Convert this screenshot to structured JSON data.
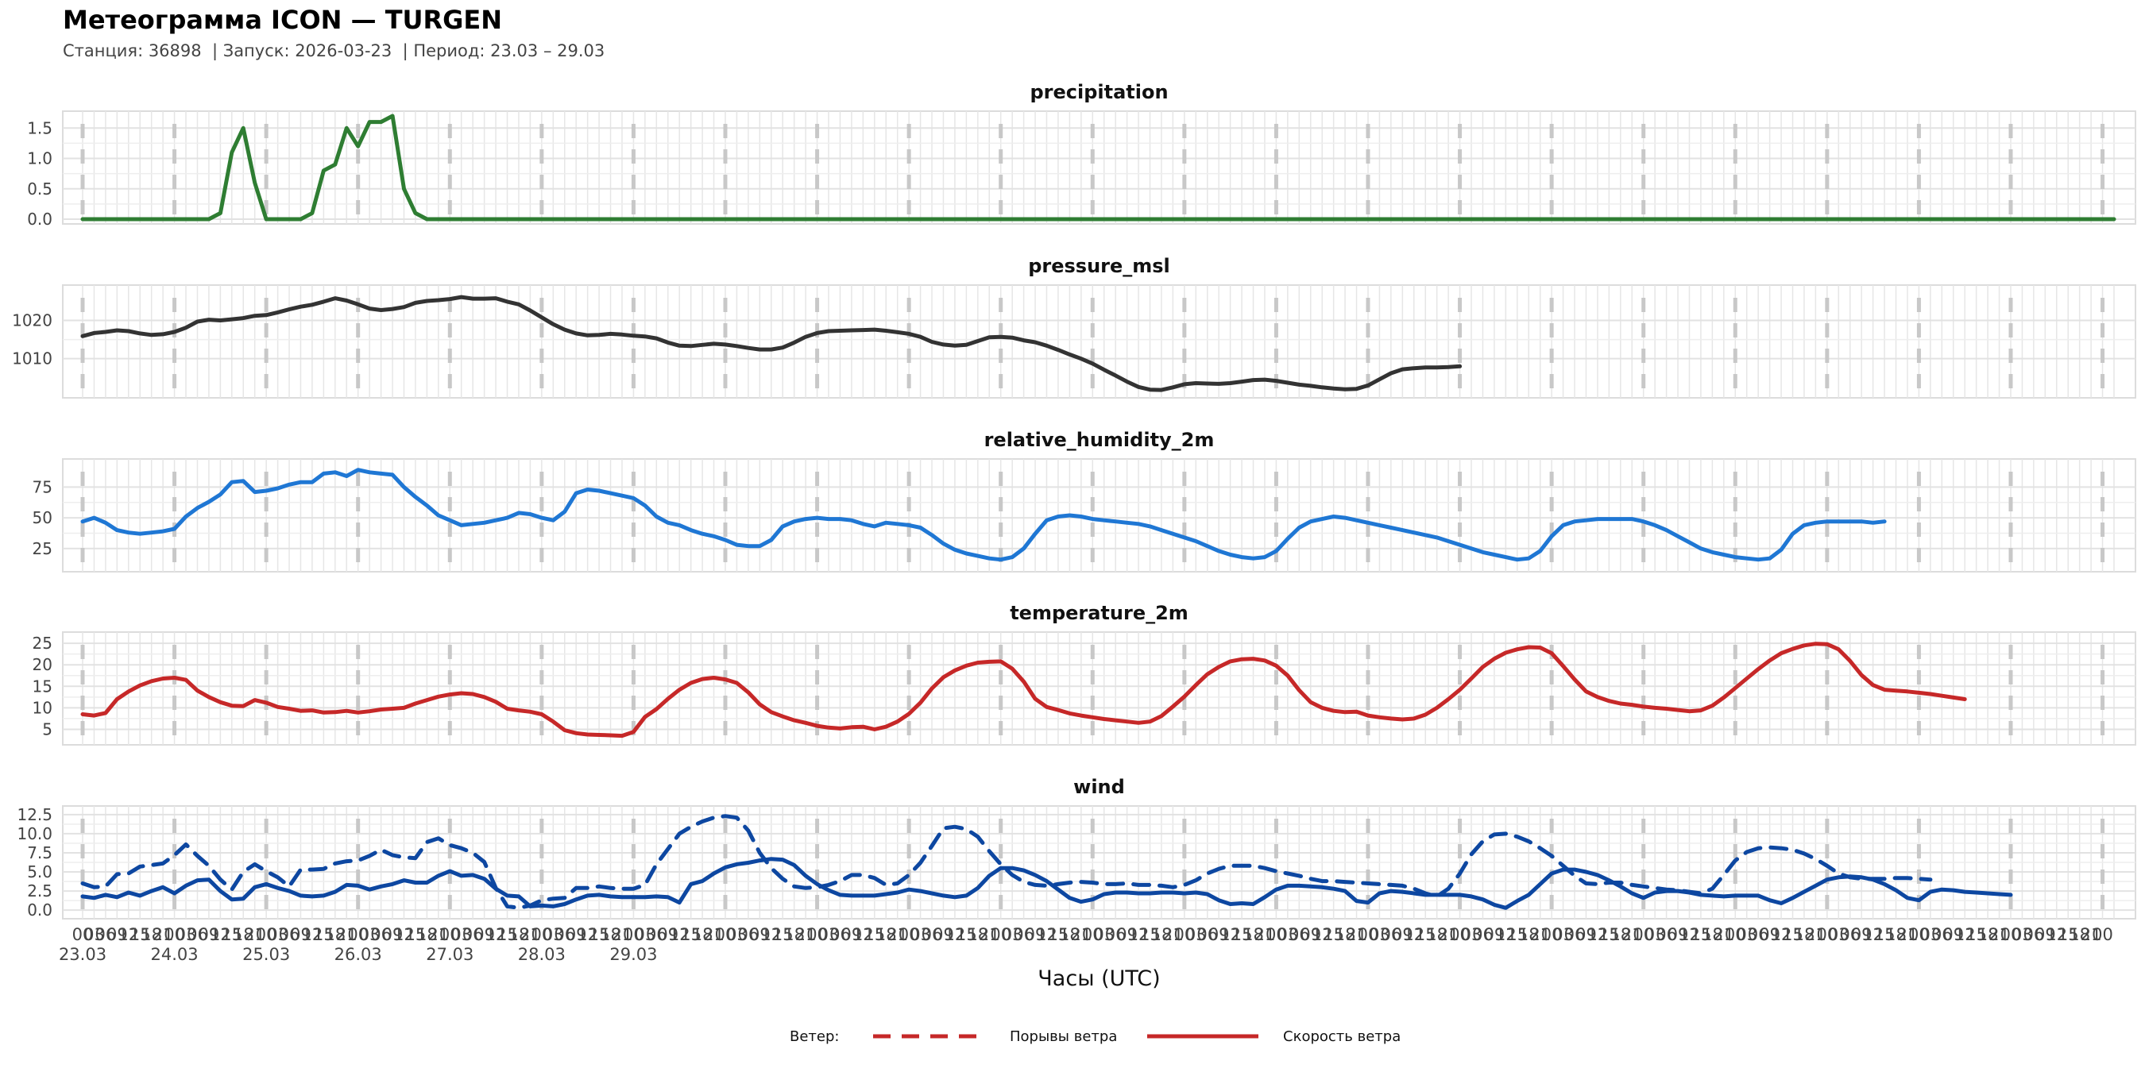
{
  "title": "Метеограмма ICON — TURGEN",
  "subtitle": "Станция: 36898  | Запуск: 2026-03-23  | Период: 23.03 – 29.03",
  "xlabel": "Часы (UTC)",
  "legend": {
    "heading": "Ветер:",
    "gusts": "Порывы ветра",
    "speed": "Скорость ветра"
  },
  "colors": {
    "precipitation": "#2e7d32",
    "pressure": "#333333",
    "humidity": "#1f77d4",
    "temperature": "#c62828",
    "wind": "#0d47a1",
    "legend": "#c62828"
  },
  "chart_data": [
    {
      "type": "line",
      "title": "precipitation",
      "ylim": [
        0,
        1.7
      ],
      "yticks": [
        "0.0",
        "0.5",
        "1.0",
        "1.5"
      ],
      "x_start": "2026-03-23 00:00",
      "x_step_hours": 3,
      "grid": true,
      "series": [
        {
          "values": [
            0,
            0,
            0,
            0,
            0,
            0,
            0,
            0,
            0,
            0,
            0,
            0,
            0.1,
            1.1,
            1.5,
            0.6,
            0,
            0,
            0,
            0,
            0.1,
            0.8,
            0.9,
            1.5,
            1.2,
            1.6,
            1.6,
            1.7,
            0.5,
            0.1,
            0,
            0,
            0,
            0,
            0,
            0,
            0,
            0,
            0,
            0,
            0,
            0,
            0,
            0,
            0,
            0,
            0,
            0,
            0,
            0,
            0,
            0,
            0,
            0,
            0,
            0,
            0,
            0,
            0,
            0,
            0,
            0,
            0,
            0,
            0,
            0,
            0,
            0,
            0,
            0,
            0,
            0,
            0,
            0,
            0,
            0,
            0,
            0,
            0,
            0,
            0,
            0,
            0,
            0,
            0,
            0,
            0,
            0,
            0,
            0,
            0,
            0,
            0,
            0,
            0,
            0,
            0,
            0,
            0,
            0,
            0,
            0,
            0,
            0,
            0,
            0,
            0,
            0,
            0,
            0,
            0,
            0,
            0,
            0,
            0,
            0,
            0,
            0,
            0,
            0,
            0,
            0,
            0,
            0,
            0,
            0,
            0,
            0,
            0,
            0,
            0,
            0,
            0,
            0,
            0,
            0,
            0,
            0,
            0,
            0,
            0,
            0,
            0,
            0,
            0,
            0,
            0,
            0,
            0,
            0,
            0,
            0,
            0,
            0,
            0,
            0,
            0,
            0,
            0,
            0,
            0,
            0,
            0,
            0,
            0,
            0,
            0,
            0,
            0,
            0,
            0,
            0,
            0,
            0,
            0,
            0,
            0,
            0
          ]
        }
      ]
    },
    {
      "type": "line",
      "title": "pressure_msl",
      "ylim": [
        1001,
        1028
      ],
      "yticks": [
        "1010",
        "1020"
      ],
      "x_start": "2026-03-23 00:00",
      "x_step_hours": 3,
      "grid": true,
      "series": [
        {
          "values": [
            1015.9,
            1016.7,
            1017,
            1017.4,
            1017.2,
            1016.6,
            1016.2,
            1016.4,
            1017,
            1018.1,
            1019.7,
            1020.2,
            1020,
            1020.3,
            1020.6,
            1021.2,
            1021.4,
            1022.1,
            1022.9,
            1023.6,
            1024.1,
            1024.9,
            1025.8,
            1025.2,
            1024.2,
            1023.1,
            1022.7,
            1023,
            1023.5,
            1024.6,
            1025.1,
            1025.3,
            1025.6,
            1026.1,
            1025.7,
            1025.7,
            1025.8,
            1024.9,
            1024.2,
            1022.6,
            1020.8,
            1019,
            1017.6,
            1016.6,
            1016.1,
            1016.2,
            1016.5,
            1016.3,
            1016,
            1015.8,
            1015.3,
            1014.2,
            1013.4,
            1013.3,
            1013.6,
            1013.9,
            1013.7,
            1013.3,
            1012.8,
            1012.4,
            1012.4,
            1012.9,
            1014.2,
            1015.7,
            1016.7,
            1017.2,
            1017.3,
            1017.4,
            1017.5,
            1017.6,
            1017.3,
            1016.9,
            1016.5,
            1015.7,
            1014.4,
            1013.7,
            1013.4,
            1013.6,
            1014.6,
            1015.6,
            1015.7,
            1015.5,
            1014.8,
            1014.3,
            1013.4,
            1012.3,
            1011.1,
            1010,
            1008.7,
            1007.1,
            1005.6,
            1004,
            1002.6,
            1001.9,
            1001.8,
            1002.5,
            1003.3,
            1003.6,
            1003.5,
            1003.4,
            1003.6,
            1004,
            1004.4,
            1004.5,
            1004.2,
            1003.7,
            1003.2,
            1002.9,
            1002.5,
            1002.2,
            1002,
            1002.1,
            1003,
            1004.6,
            1006.2,
            1007.2,
            1007.5,
            1007.7,
            1007.7,
            1007.8,
            1008
          ]
        }
      ]
    },
    {
      "type": "line",
      "title": "relative_humidity_2m",
      "ylim": [
        10,
        94
      ],
      "yticks": [
        "25",
        "50",
        "75"
      ],
      "x_start": "2026-03-23 00:00",
      "x_step_hours": 3,
      "grid": true,
      "series": [
        {
          "values": [
            47,
            50,
            46,
            40,
            38,
            37,
            38,
            39,
            41,
            51,
            58,
            63,
            69,
            79,
            80,
            71,
            72,
            74,
            77,
            79,
            79,
            86,
            87,
            84,
            89,
            87,
            86,
            85,
            75,
            67,
            60,
            52,
            48,
            44,
            45,
            46,
            48,
            50,
            54,
            53,
            50,
            48,
            55,
            70,
            73,
            72,
            70,
            68,
            66,
            60,
            51,
            46,
            44,
            40,
            37,
            35,
            32,
            28,
            27,
            27,
            32,
            43,
            47,
            49,
            50,
            49,
            49,
            48,
            45,
            43,
            46,
            45,
            44,
            42,
            36,
            29,
            24,
            21,
            19,
            17,
            16,
            18,
            25,
            37,
            48,
            51,
            52,
            51,
            49,
            48,
            47,
            46,
            45,
            43,
            40,
            37,
            34,
            31,
            27,
            23,
            20,
            18,
            17,
            18,
            23,
            33,
            42,
            47,
            49,
            51,
            50,
            48,
            46,
            44,
            42,
            40,
            38,
            36,
            34,
            31,
            28,
            25,
            22,
            20,
            18,
            16,
            17,
            23,
            35,
            44,
            47,
            48,
            49,
            49,
            49,
            49,
            47,
            44,
            40,
            35,
            30,
            25,
            22,
            20,
            18,
            17,
            16,
            17,
            24,
            37,
            44,
            46,
            47,
            47,
            47,
            47,
            46,
            47
          ]
        }
      ]
    },
    {
      "type": "line",
      "title": "temperature_2m",
      "ylim": [
        2.5,
        26.5
      ],
      "yticks": [
        "5",
        "10",
        "15",
        "20",
        "25"
      ],
      "x_start": "2026-03-23 00:00",
      "x_step_hours": 3,
      "grid": true,
      "series": [
        {
          "values": [
            8.5,
            8.2,
            8.8,
            12,
            13.8,
            15.2,
            16.2,
            16.8,
            17,
            16.5,
            14,
            12.5,
            11.3,
            10.5,
            10.4,
            11.8,
            11.2,
            10.2,
            9.8,
            9.3,
            9.4,
            8.9,
            9,
            9.3,
            8.9,
            9.2,
            9.6,
            9.8,
            10,
            11,
            11.8,
            12.6,
            13.1,
            13.4,
            13.2,
            12.5,
            11.4,
            9.8,
            9.4,
            9.1,
            8.5,
            6.8,
            4.8,
            4.1,
            3.8,
            3.7,
            3.6,
            3.5,
            4.4,
            7.9,
            9.7,
            12.1,
            14.2,
            15.8,
            16.7,
            17,
            16.6,
            15.8,
            13.6,
            10.8,
            9,
            8,
            7.1,
            6.5,
            5.8,
            5.4,
            5.2,
            5.5,
            5.6,
            5,
            5.6,
            6.8,
            8.6,
            11.2,
            14.5,
            17.1,
            18.7,
            19.8,
            20.5,
            20.7,
            20.8,
            19.1,
            16.1,
            12.1,
            10.2,
            9.5,
            8.7,
            8.2,
            7.8,
            7.4,
            7.1,
            6.8,
            6.5,
            6.8,
            8.1,
            10.3,
            12.6,
            15.3,
            17.8,
            19.5,
            20.8,
            21.3,
            21.4,
            21,
            19.8,
            17.5,
            14.1,
            11.3,
            10,
            9.3,
            9,
            9.1,
            8.2,
            7.8,
            7.5,
            7.3,
            7.5,
            8.4,
            10,
            12,
            14.2,
            16.8,
            19.5,
            21.4,
            22.8,
            23.6,
            24.1,
            24,
            22.7,
            19.7,
            16.6,
            13.8,
            12.5,
            11.6,
            11,
            10.7,
            10.3,
            10,
            9.8,
            9.5,
            9.2,
            9.4,
            10.5,
            12.4,
            14.6,
            16.8,
            19,
            21,
            22.7,
            23.7,
            24.5,
            24.9,
            24.8,
            23.6,
            20.9,
            17.6,
            15.3,
            14.2,
            14,
            13.8,
            13.5,
            13.2,
            12.8,
            12.4,
            12
          ]
        }
      ]
    },
    {
      "type": "line",
      "title": "wind",
      "ylim": [
        -0.5,
        13
      ],
      "yticks": [
        "0.0",
        "2.5",
        "5.0",
        "7.5",
        "10.0",
        "12.5"
      ],
      "x_start": "2026-03-23 00:00",
      "x_step_hours": 3,
      "xticks": [
        "00",
        "03",
        "06",
        "09",
        "12",
        "15",
        "18",
        "21"
      ],
      "days": [
        "23.03",
        "24.03",
        "25.03",
        "26.03",
        "27.03",
        "28.03",
        "29.03"
      ],
      "grid": true,
      "series": [
        {
          "name": "Порывы ветра",
          "dash": true,
          "values": [
            3.5,
            3,
            3.1,
            4.7,
            4.8,
            5.7,
            5.9,
            6.1,
            7.2,
            8.6,
            7.1,
            5.8,
            4,
            2.7,
            5,
            6,
            5.1,
            4.3,
            3.1,
            5.3,
            5.3,
            5.4,
            6.1,
            6.4,
            6.5,
            7.1,
            7.9,
            7.2,
            6.9,
            6.8,
            8.9,
            9.4,
            8.5,
            8.1,
            7.5,
            6.3,
            2.9,
            0.5,
            0.3,
            0.6,
            1.3,
            1.5,
            1.6,
            2.9,
            2.9,
            3.1,
            2.9,
            2.8,
            2.8,
            3.3,
            6,
            8,
            10,
            10.9,
            11.6,
            12.1,
            12.3,
            12.1,
            10.4,
            7.5,
            5.5,
            4.1,
            3.1,
            2.9,
            3,
            3.3,
            3.8,
            4.6,
            4.6,
            4.2,
            3.3,
            3.5,
            4.6,
            6.2,
            8.4,
            10.7,
            10.9,
            10.6,
            9.6,
            7.7,
            6,
            4.6,
            3.7,
            3.3,
            3.2,
            3.4,
            3.6,
            3.7,
            3.6,
            3.4,
            3.4,
            3.5,
            3.3,
            3.3,
            3.2,
            3,
            3.3,
            3.9,
            4.8,
            5.4,
            5.8,
            5.8,
            5.8,
            5.5,
            5.1,
            4.8,
            4.5,
            4.1,
            3.8,
            3.8,
            3.7,
            3.6,
            3.5,
            3.4,
            3.3,
            3.2,
            2.8,
            2.2,
            1.8,
            2.8,
            4.8,
            7.3,
            9,
            9.9,
            10,
            9.6,
            9,
            8.1,
            7.1,
            5.8,
            4.5,
            3.5,
            3.4,
            3.6,
            3.6,
            3.3,
            3.1,
            2.9,
            2.7,
            2.6,
            2.4,
            2.2,
            2.8,
            4.6,
            6.5,
            7.6,
            8.1,
            8.2,
            8.1,
            7.9,
            7.4,
            6.7,
            5.8,
            4.8,
            4.3,
            4.1,
            4.1,
            4.1,
            4.2,
            4.2,
            4.1,
            4
          ]
        },
        {
          "name": "Скорость ветра",
          "dash": false,
          "values": [
            1.8,
            1.6,
            2,
            1.7,
            2.3,
            1.9,
            2.5,
            3,
            2.2,
            3.2,
            3.9,
            4,
            2.5,
            1.4,
            1.5,
            3,
            3.4,
            2.9,
            2.5,
            1.9,
            1.8,
            1.9,
            2.4,
            3.3,
            3.2,
            2.7,
            3.1,
            3.4,
            3.9,
            3.6,
            3.6,
            4.5,
            5.1,
            4.5,
            4.6,
            4.1,
            2.8,
            1.9,
            1.8,
            0.5,
            0.6,
            0.5,
            0.8,
            1.4,
            1.9,
            2,
            1.8,
            1.7,
            1.7,
            1.7,
            1.8,
            1.7,
            1,
            3.4,
            3.8,
            4.8,
            5.6,
            6,
            6.2,
            6.5,
            6.7,
            6.6,
            5.9,
            4.5,
            3.4,
            2.6,
            2,
            1.9,
            1.9,
            1.9,
            2.1,
            2.3,
            2.7,
            2.5,
            2.2,
            1.9,
            1.7,
            1.9,
            2.9,
            4.5,
            5.5,
            5.5,
            5.2,
            4.6,
            3.8,
            2.7,
            1.6,
            1.1,
            1.4,
            2.1,
            2.3,
            2.3,
            2.2,
            2.2,
            2.3,
            2.3,
            2.2,
            2.3,
            2.1,
            1.3,
            0.8,
            0.9,
            0.8,
            1.7,
            2.7,
            3.2,
            3.2,
            3.1,
            3,
            2.8,
            2.5,
            1.2,
            1,
            2.2,
            2.5,
            2.4,
            2.2,
            2,
            2,
            2,
            2,
            1.8,
            1.4,
            0.7,
            0.3,
            1.2,
            2,
            3.4,
            4.8,
            5.3,
            5.3,
            5,
            4.6,
            3.9,
            3.1,
            2.2,
            1.6,
            2.3,
            2.5,
            2.5,
            2.3,
            2,
            1.9,
            1.8,
            1.9,
            1.9,
            1.9,
            1.3,
            0.9,
            1.6,
            2.4,
            3.2,
            4,
            4.3,
            4.4,
            4.3,
            4,
            3.4,
            2.6,
            1.6,
            1.3,
            2.4,
            2.7,
            2.6,
            2.4,
            2.3,
            2.2,
            2.1,
            2
          ]
        }
      ]
    }
  ]
}
